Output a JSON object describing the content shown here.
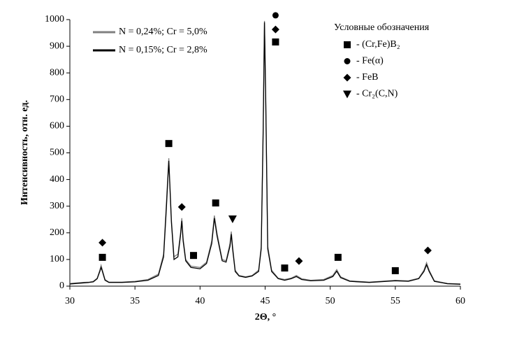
{
  "chart_data": {
    "type": "line",
    "x_label": "2Θ, °",
    "y_label": "Интенсивность,  отн. ед.",
    "x": [
      30,
      30.5,
      31,
      31.5,
      31.8,
      32.1,
      32.3,
      32.4,
      32.5,
      32.7,
      33,
      34,
      35,
      36,
      36.8,
      37.2,
      37.4,
      37.6,
      37.8,
      38,
      38.3,
      38.5,
      38.6,
      38.7,
      38.9,
      39.3,
      40,
      40.5,
      40.9,
      41.1,
      41.3,
      41.7,
      42,
      42.3,
      42.4,
      42.5,
      42.7,
      43,
      43.5,
      44,
      44.5,
      44.7,
      44.85,
      44.95,
      45.05,
      45.2,
      45.5,
      46,
      46.5,
      47,
      47.4,
      47.8,
      48.5,
      49.5,
      50.2,
      50.5,
      50.8,
      51.5,
      53,
      55,
      56,
      56.8,
      57.2,
      57.4,
      57.6,
      58,
      59,
      60
    ],
    "series": [
      {
        "name": "N = 0,24%; Cr = 5,0%",
        "color": "#808080",
        "values": [
          10,
          12,
          14,
          15,
          18,
          30,
          60,
          78,
          60,
          25,
          15,
          15,
          18,
          25,
          45,
          120,
          300,
          480,
          250,
          110,
          120,
          200,
          255,
          180,
          100,
          75,
          70,
          90,
          170,
          265,
          200,
          100,
          95,
          160,
          205,
          150,
          60,
          40,
          35,
          40,
          60,
          150,
          600,
          995,
          700,
          150,
          60,
          30,
          25,
          30,
          40,
          28,
          22,
          25,
          40,
          62,
          35,
          20,
          15,
          22,
          20,
          30,
          60,
          88,
          60,
          20,
          10,
          8
        ]
      },
      {
        "name": "N = 0,15%; Cr = 2,8%",
        "color": "#000000",
        "values": [
          8,
          10,
          12,
          14,
          16,
          28,
          55,
          70,
          55,
          22,
          14,
          14,
          16,
          22,
          40,
          110,
          280,
          470,
          240,
          100,
          110,
          190,
          245,
          170,
          95,
          70,
          65,
          85,
          160,
          255,
          190,
          95,
          90,
          150,
          195,
          140,
          55,
          38,
          33,
          38,
          55,
          140,
          580,
          990,
          680,
          140,
          55,
          28,
          22,
          28,
          36,
          25,
          20,
          22,
          36,
          56,
          32,
          18,
          14,
          20,
          18,
          28,
          55,
          80,
          55,
          18,
          9,
          7
        ]
      }
    ],
    "xlim": [
      30,
      60
    ],
    "xticks": [
      30,
      35,
      40,
      45,
      50,
      55,
      60
    ],
    "ylim": [
      0,
      1000
    ],
    "yticks": [
      0,
      100,
      200,
      300,
      400,
      500,
      600,
      700,
      800,
      900,
      1000
    ],
    "grid": false,
    "legend": "top-left",
    "phase_legend": {
      "title": "Условные обозначения",
      "entries": [
        {
          "symbol": "square",
          "label": "- (Cr,Fe)B₂"
        },
        {
          "symbol": "circle",
          "label": "- Fe(α)"
        },
        {
          "symbol": "diamond",
          "label": "- FeB"
        },
        {
          "symbol": "triangle",
          "label": "- Cr₂(C,N)"
        }
      ]
    },
    "markers": [
      {
        "symbol": "square",
        "x": 32.5,
        "y": 108
      },
      {
        "symbol": "diamond",
        "x": 32.5,
        "y": 163
      },
      {
        "symbol": "square",
        "x": 37.6,
        "y": 535
      },
      {
        "symbol": "diamond",
        "x": 38.6,
        "y": 297
      },
      {
        "symbol": "square",
        "x": 39.5,
        "y": 115
      },
      {
        "symbol": "square",
        "x": 41.2,
        "y": 312
      },
      {
        "symbol": "triangle",
        "x": 42.5,
        "y": 252
      },
      {
        "symbol": "circle",
        "x": 45.8,
        "y": 1016
      },
      {
        "symbol": "diamond",
        "x": 45.8,
        "y": 963
      },
      {
        "symbol": "square",
        "x": 45.8,
        "y": 916
      },
      {
        "symbol": "square",
        "x": 46.5,
        "y": 68
      },
      {
        "symbol": "diamond",
        "x": 47.6,
        "y": 94
      },
      {
        "symbol": "square",
        "x": 50.6,
        "y": 108
      },
      {
        "symbol": "square",
        "x": 55.0,
        "y": 58
      },
      {
        "symbol": "diamond",
        "x": 57.5,
        "y": 134
      }
    ]
  }
}
